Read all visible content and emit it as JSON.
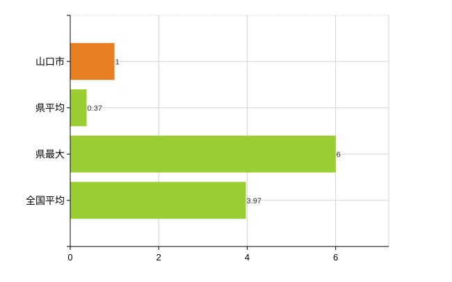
{
  "chart_data": {
    "type": "bar",
    "orientation": "horizontal",
    "categories": [
      "山口市",
      "県平均",
      "県最大",
      "全国平均"
    ],
    "values": [
      1,
      0.37,
      6,
      3.97
    ],
    "data_labels": [
      "1",
      "0.37",
      "6",
      "3.97"
    ],
    "bar_colors": [
      "#e67e22",
      "#9acd32",
      "#9acd32",
      "#9acd32"
    ],
    "xlim": [
      0,
      7.2
    ],
    "x_ticks": [
      0,
      2,
      4,
      6
    ],
    "x_tick_labels": [
      "0",
      "2",
      "4",
      "6"
    ],
    "grid": true,
    "grid_color": "#d3d3d3",
    "axis_color": "#000000",
    "title": "",
    "xlabel": "",
    "ylabel": ""
  }
}
